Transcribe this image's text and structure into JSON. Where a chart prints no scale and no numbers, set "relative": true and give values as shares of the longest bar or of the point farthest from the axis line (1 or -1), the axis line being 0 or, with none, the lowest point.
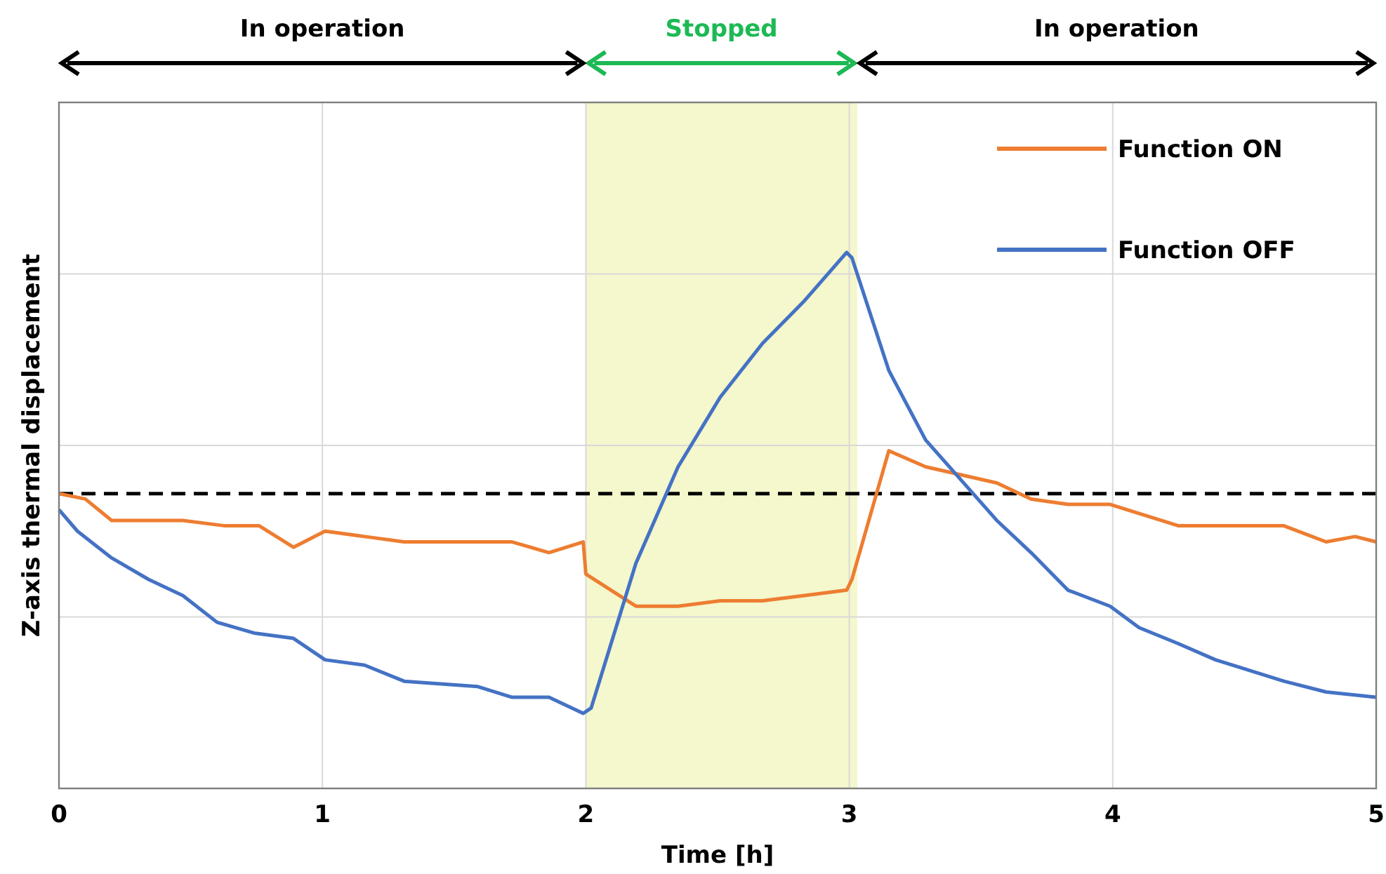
{
  "chart_data": {
    "type": "line",
    "relative": true,
    "xlabel": "Time [h]",
    "ylabel": "Z-axis thermal displacement",
    "xlim": [
      0,
      5
    ],
    "xticks": [
      0,
      1,
      2,
      3,
      4,
      5
    ],
    "grid": true,
    "legend": "top right",
    "line_style": "solid",
    "marker": "none",
    "series": [
      {
        "name": "Function ON",
        "color": "#ed7d31",
        "x": [
          0,
          0.1,
          0.2,
          0.47,
          0.63,
          0.76,
          0.89,
          1.01,
          1.16,
          1.31,
          1.59,
          1.72,
          1.86,
          1.99,
          2.0,
          2.19,
          2.35,
          2.51,
          2.67,
          2.83,
          2.99,
          3.01,
          3.15,
          3.29,
          3.56,
          3.69,
          3.83,
          3.99,
          4.25,
          4.36,
          4.65,
          4.81,
          4.92,
          5
        ],
        "values": [
          0.55,
          0.54,
          0.5,
          0.5,
          0.49,
          0.49,
          0.45,
          0.48,
          0.47,
          0.46,
          0.46,
          0.46,
          0.44,
          0.46,
          0.4,
          0.34,
          0.34,
          0.35,
          0.35,
          0.36,
          0.37,
          0.39,
          0.63,
          0.6,
          0.57,
          0.54,
          0.53,
          0.53,
          0.49,
          0.49,
          0.49,
          0.46,
          0.47,
          0.46
        ]
      },
      {
        "name": "Function OFF",
        "color": "#4472c4",
        "x": [
          0,
          0.07,
          0.2,
          0.34,
          0.47,
          0.6,
          0.74,
          0.89,
          1.01,
          1.16,
          1.31,
          1.59,
          1.72,
          1.86,
          1.99,
          2.02,
          2.19,
          2.35,
          2.51,
          2.67,
          2.83,
          2.99,
          3.01,
          3.15,
          3.29,
          3.56,
          3.69,
          3.83,
          3.99,
          4.1,
          4.25,
          4.39,
          4.52,
          4.65,
          4.81,
          5
        ],
        "values": [
          0.52,
          0.48,
          0.43,
          0.39,
          0.36,
          0.31,
          0.29,
          0.28,
          0.24,
          0.23,
          0.2,
          0.19,
          0.17,
          0.17,
          0.14,
          0.15,
          0.42,
          0.6,
          0.73,
          0.83,
          0.91,
          1,
          0.99,
          0.78,
          0.65,
          0.5,
          0.44,
          0.37,
          0.34,
          0.3,
          0.27,
          0.24,
          0.22,
          0.2,
          0.18,
          0.17
        ]
      }
    ],
    "ref_lines": [
      {
        "axis": "y",
        "value": 0.55,
        "color": "#000000",
        "line_style": "dashed"
      }
    ],
    "annotations": [
      "In operation",
      "In operation"
    ],
    "bands": [
      {
        "axis": "x",
        "from": 2,
        "to": 3.03,
        "label": "Stopped",
        "color": "#f5f7cc"
      }
    ]
  }
}
